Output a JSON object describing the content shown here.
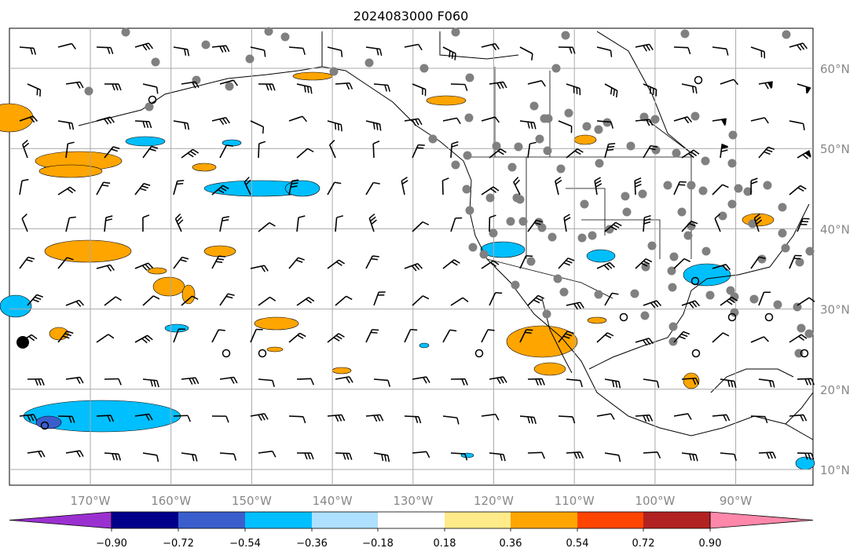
{
  "title": "2024083000 F060",
  "lat_labels": [
    "60°N",
    "50°N",
    "40°N",
    "30°N",
    "20°N",
    "10°N"
  ],
  "lon_labels": [
    "170°W",
    "160°W",
    "150°W",
    "140°W",
    "130°W",
    "120°W",
    "110°W",
    "100°W",
    "90°W"
  ],
  "colorbar": {
    "ticks": [
      "−0.90",
      "−0.72",
      "−0.54",
      "−0.36",
      "−0.18",
      "0.18",
      "0.36",
      "0.54",
      "0.72",
      "0.90"
    ],
    "colors": [
      "#9b30d0",
      "#00008b",
      "#3a5fcd",
      "#00bfff",
      "#aee0ff",
      "#ffffff",
      "#ffeb8a",
      "#ffa500",
      "#ff4500",
      "#b22222",
      "#ff88aa"
    ]
  },
  "colors": {
    "land_line": "#000000",
    "grid": "#aaaaaa",
    "positive_field": "#ffa500",
    "negative_field": "#00bfff",
    "station_dot": "#808080"
  }
}
